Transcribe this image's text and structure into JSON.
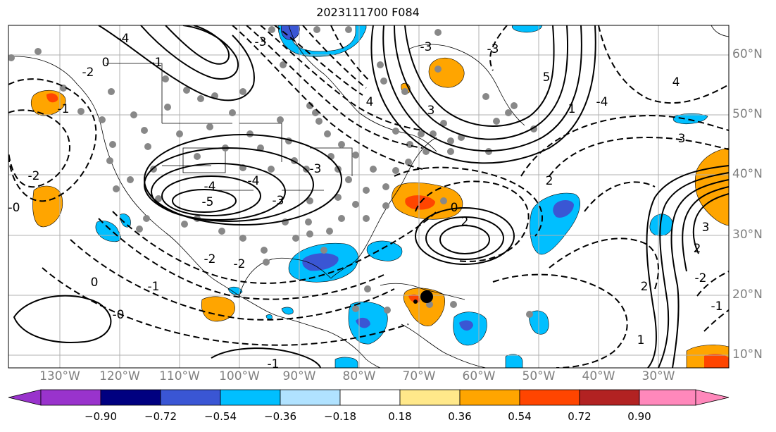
{
  "title": "2023111700 F084",
  "lat_labels": [
    "60°N",
    "50°N",
    "40°N",
    "30°N",
    "20°N",
    "10°N"
  ],
  "lon_labels": [
    "130°W",
    "120°W",
    "110°W",
    "100°W",
    "90°W",
    "80°W",
    "70°W",
    "60°W",
    "50°W",
    "40°W",
    "30°W"
  ],
  "colorbar": {
    "ticks": [
      "−0.90",
      "−0.72",
      "−0.54",
      "−0.36",
      "−0.18",
      "0.18",
      "0.36",
      "0.54",
      "0.72",
      "0.90"
    ],
    "colors": [
      "#9933cc",
      "#000080",
      "#3a56d4",
      "#00bfff",
      "#b0e2ff",
      "#ffffff",
      "#ffe88a",
      "#ffa500",
      "#ff4500",
      "#b22222",
      "#ff88bb"
    ]
  },
  "contour_labels": [
    "-4",
    "-3",
    "-2",
    "-1",
    "0",
    "0",
    "-2",
    "-3",
    "-4",
    "-5",
    "-4",
    "-3",
    "-2",
    "-1",
    "1",
    "2",
    "3",
    "4",
    "5",
    "3",
    "2",
    "1",
    "-0",
    "-1",
    "-2",
    "-3",
    "-4",
    "-3",
    "-2",
    "-1",
    "0",
    "2",
    "-1",
    "-0",
    "4",
    "3",
    "2"
  ]
}
